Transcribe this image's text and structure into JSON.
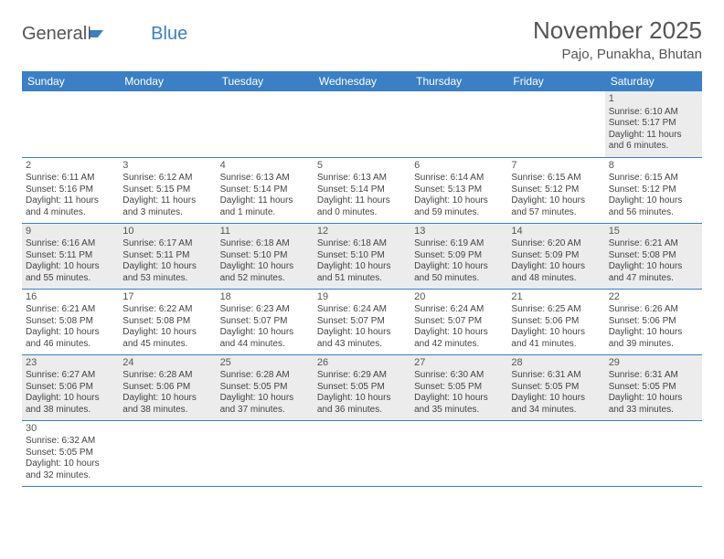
{
  "logo": {
    "text1": "General",
    "text2": "Blue"
  },
  "title": "November 2025",
  "location": "Pajo, Punakha, Bhutan",
  "weekday_labels": [
    "Sunday",
    "Monday",
    "Tuesday",
    "Wednesday",
    "Thursday",
    "Friday",
    "Saturday"
  ],
  "colors": {
    "header_bg": "#3b7fc4",
    "alt_row": "#ececec"
  },
  "days": {
    "1": {
      "sunrise": "Sunrise: 6:10 AM",
      "sunset": "Sunset: 5:17 PM",
      "dl1": "Daylight: 11 hours",
      "dl2": "and 6 minutes."
    },
    "2": {
      "sunrise": "Sunrise: 6:11 AM",
      "sunset": "Sunset: 5:16 PM",
      "dl1": "Daylight: 11 hours",
      "dl2": "and 4 minutes."
    },
    "3": {
      "sunrise": "Sunrise: 6:12 AM",
      "sunset": "Sunset: 5:15 PM",
      "dl1": "Daylight: 11 hours",
      "dl2": "and 3 minutes."
    },
    "4": {
      "sunrise": "Sunrise: 6:13 AM",
      "sunset": "Sunset: 5:14 PM",
      "dl1": "Daylight: 11 hours",
      "dl2": "and 1 minute."
    },
    "5": {
      "sunrise": "Sunrise: 6:13 AM",
      "sunset": "Sunset: 5:14 PM",
      "dl1": "Daylight: 11 hours",
      "dl2": "and 0 minutes."
    },
    "6": {
      "sunrise": "Sunrise: 6:14 AM",
      "sunset": "Sunset: 5:13 PM",
      "dl1": "Daylight: 10 hours",
      "dl2": "and 59 minutes."
    },
    "7": {
      "sunrise": "Sunrise: 6:15 AM",
      "sunset": "Sunset: 5:12 PM",
      "dl1": "Daylight: 10 hours",
      "dl2": "and 57 minutes."
    },
    "8": {
      "sunrise": "Sunrise: 6:15 AM",
      "sunset": "Sunset: 5:12 PM",
      "dl1": "Daylight: 10 hours",
      "dl2": "and 56 minutes."
    },
    "9": {
      "sunrise": "Sunrise: 6:16 AM",
      "sunset": "Sunset: 5:11 PM",
      "dl1": "Daylight: 10 hours",
      "dl2": "and 55 minutes."
    },
    "10": {
      "sunrise": "Sunrise: 6:17 AM",
      "sunset": "Sunset: 5:11 PM",
      "dl1": "Daylight: 10 hours",
      "dl2": "and 53 minutes."
    },
    "11": {
      "sunrise": "Sunrise: 6:18 AM",
      "sunset": "Sunset: 5:10 PM",
      "dl1": "Daylight: 10 hours",
      "dl2": "and 52 minutes."
    },
    "12": {
      "sunrise": "Sunrise: 6:18 AM",
      "sunset": "Sunset: 5:10 PM",
      "dl1": "Daylight: 10 hours",
      "dl2": "and 51 minutes."
    },
    "13": {
      "sunrise": "Sunrise: 6:19 AM",
      "sunset": "Sunset: 5:09 PM",
      "dl1": "Daylight: 10 hours",
      "dl2": "and 50 minutes."
    },
    "14": {
      "sunrise": "Sunrise: 6:20 AM",
      "sunset": "Sunset: 5:09 PM",
      "dl1": "Daylight: 10 hours",
      "dl2": "and 48 minutes."
    },
    "15": {
      "sunrise": "Sunrise: 6:21 AM",
      "sunset": "Sunset: 5:08 PM",
      "dl1": "Daylight: 10 hours",
      "dl2": "and 47 minutes."
    },
    "16": {
      "sunrise": "Sunrise: 6:21 AM",
      "sunset": "Sunset: 5:08 PM",
      "dl1": "Daylight: 10 hours",
      "dl2": "and 46 minutes."
    },
    "17": {
      "sunrise": "Sunrise: 6:22 AM",
      "sunset": "Sunset: 5:08 PM",
      "dl1": "Daylight: 10 hours",
      "dl2": "and 45 minutes."
    },
    "18": {
      "sunrise": "Sunrise: 6:23 AM",
      "sunset": "Sunset: 5:07 PM",
      "dl1": "Daylight: 10 hours",
      "dl2": "and 44 minutes."
    },
    "19": {
      "sunrise": "Sunrise: 6:24 AM",
      "sunset": "Sunset: 5:07 PM",
      "dl1": "Daylight: 10 hours",
      "dl2": "and 43 minutes."
    },
    "20": {
      "sunrise": "Sunrise: 6:24 AM",
      "sunset": "Sunset: 5:07 PM",
      "dl1": "Daylight: 10 hours",
      "dl2": "and 42 minutes."
    },
    "21": {
      "sunrise": "Sunrise: 6:25 AM",
      "sunset": "Sunset: 5:06 PM",
      "dl1": "Daylight: 10 hours",
      "dl2": "and 41 minutes."
    },
    "22": {
      "sunrise": "Sunrise: 6:26 AM",
      "sunset": "Sunset: 5:06 PM",
      "dl1": "Daylight: 10 hours",
      "dl2": "and 39 minutes."
    },
    "23": {
      "sunrise": "Sunrise: 6:27 AM",
      "sunset": "Sunset: 5:06 PM",
      "dl1": "Daylight: 10 hours",
      "dl2": "and 38 minutes."
    },
    "24": {
      "sunrise": "Sunrise: 6:28 AM",
      "sunset": "Sunset: 5:06 PM",
      "dl1": "Daylight: 10 hours",
      "dl2": "and 38 minutes."
    },
    "25": {
      "sunrise": "Sunrise: 6:28 AM",
      "sunset": "Sunset: 5:05 PM",
      "dl1": "Daylight: 10 hours",
      "dl2": "and 37 minutes."
    },
    "26": {
      "sunrise": "Sunrise: 6:29 AM",
      "sunset": "Sunset: 5:05 PM",
      "dl1": "Daylight: 10 hours",
      "dl2": "and 36 minutes."
    },
    "27": {
      "sunrise": "Sunrise: 6:30 AM",
      "sunset": "Sunset: 5:05 PM",
      "dl1": "Daylight: 10 hours",
      "dl2": "and 35 minutes."
    },
    "28": {
      "sunrise": "Sunrise: 6:31 AM",
      "sunset": "Sunset: 5:05 PM",
      "dl1": "Daylight: 10 hours",
      "dl2": "and 34 minutes."
    },
    "29": {
      "sunrise": "Sunrise: 6:31 AM",
      "sunset": "Sunset: 5:05 PM",
      "dl1": "Daylight: 10 hours",
      "dl2": "and 33 minutes."
    },
    "30": {
      "sunrise": "Sunrise: 6:32 AM",
      "sunset": "Sunset: 5:05 PM",
      "dl1": "Daylight: 10 hours",
      "dl2": "and 32 minutes."
    }
  },
  "nums": {
    "1": "1",
    "2": "2",
    "3": "3",
    "4": "4",
    "5": "5",
    "6": "6",
    "7": "7",
    "8": "8",
    "9": "9",
    "10": "10",
    "11": "11",
    "12": "12",
    "13": "13",
    "14": "14",
    "15": "15",
    "16": "16",
    "17": "17",
    "18": "18",
    "19": "19",
    "20": "20",
    "21": "21",
    "22": "22",
    "23": "23",
    "24": "24",
    "25": "25",
    "26": "26",
    "27": "27",
    "28": "28",
    "29": "29",
    "30": "30"
  }
}
